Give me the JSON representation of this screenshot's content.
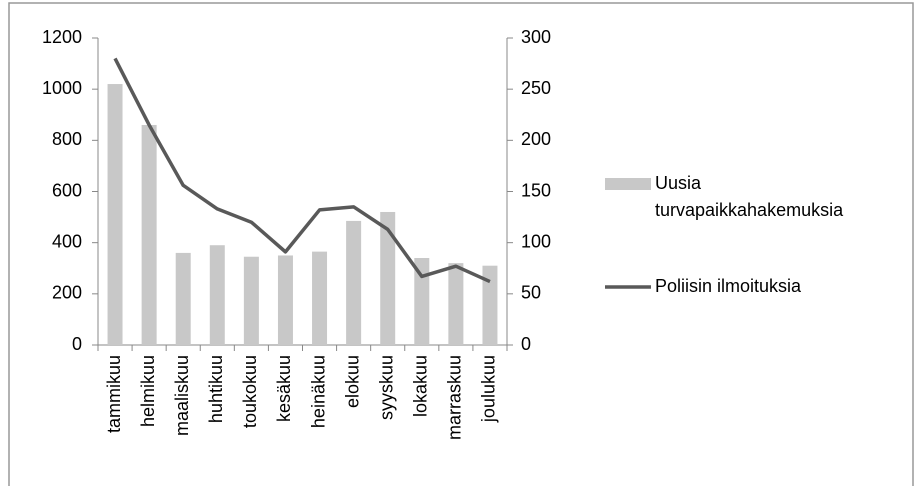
{
  "chart_data": {
    "type": "bar_line",
    "categories": [
      "tammikuu",
      "helmikuu",
      "maaliskuu",
      "huhtikuu",
      "toukokuu",
      "kesäkuu",
      "heinäkuu",
      "elokuu",
      "syyskuu",
      "lokakuu",
      "marraskuu",
      "joulukuu"
    ],
    "series": [
      {
        "name": "Uusia turvapaikkahakemuksia",
        "type": "bar",
        "color": "#c8c8c8",
        "values": [
          1020,
          860,
          360,
          390,
          345,
          350,
          365,
          485,
          520,
          340,
          320,
          310
        ]
      },
      {
        "name": "Poliisin ilmoituksia",
        "type": "line",
        "axis": "y2",
        "color": "#595959",
        "values": [
          280,
          215,
          156,
          133,
          120,
          91,
          132,
          135,
          113,
          67,
          77,
          62
        ]
      }
    ],
    "ylim": [
      0,
      1200
    ],
    "yticks": [
      0,
      200,
      400,
      600,
      800,
      1000,
      1200
    ],
    "y2lim": [
      0,
      300
    ],
    "y2ticks": [
      0,
      50,
      100,
      150,
      200,
      250,
      300
    ],
    "legend": "right"
  }
}
